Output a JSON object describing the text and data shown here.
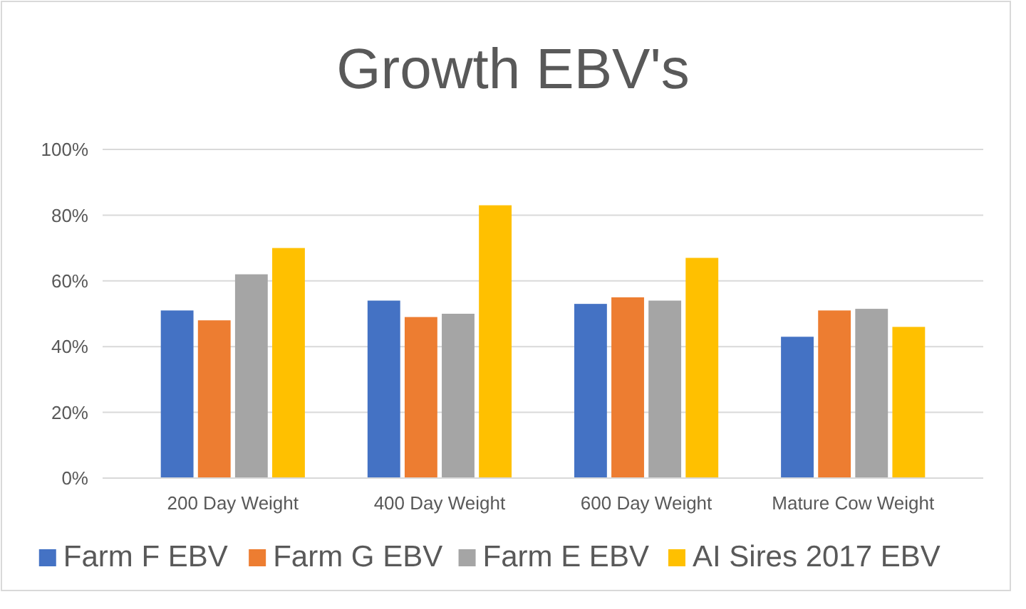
{
  "chart_data": {
    "type": "bar",
    "title": "Growth EBV's",
    "categories": [
      "200 Day Weight",
      "400 Day Weight",
      "600 Day Weight",
      "Mature Cow Weight"
    ],
    "series": [
      {
        "name": "Farm F EBV",
        "color": "#4472c4",
        "values": [
          51,
          54,
          53,
          43
        ]
      },
      {
        "name": "Farm G EBV",
        "color": "#ed7d31",
        "values": [
          48,
          49,
          55,
          51
        ]
      },
      {
        "name": "Farm E EBV",
        "color": "#a5a5a5",
        "values": [
          62,
          50,
          54,
          51.5
        ]
      },
      {
        "name": "AI Sires 2017 EBV",
        "color": "#ffc000",
        "values": [
          70,
          83,
          67,
          46
        ]
      }
    ],
    "ylim": [
      0,
      100
    ],
    "yticks": [
      {
        "value": 0,
        "label": "0%"
      },
      {
        "value": 20,
        "label": "20%"
      },
      {
        "value": 40,
        "label": "40%"
      },
      {
        "value": 60,
        "label": "60%"
      },
      {
        "value": 80,
        "label": "80%"
      },
      {
        "value": 100,
        "label": "100%"
      }
    ],
    "grid": "y",
    "legend": "bottom"
  }
}
